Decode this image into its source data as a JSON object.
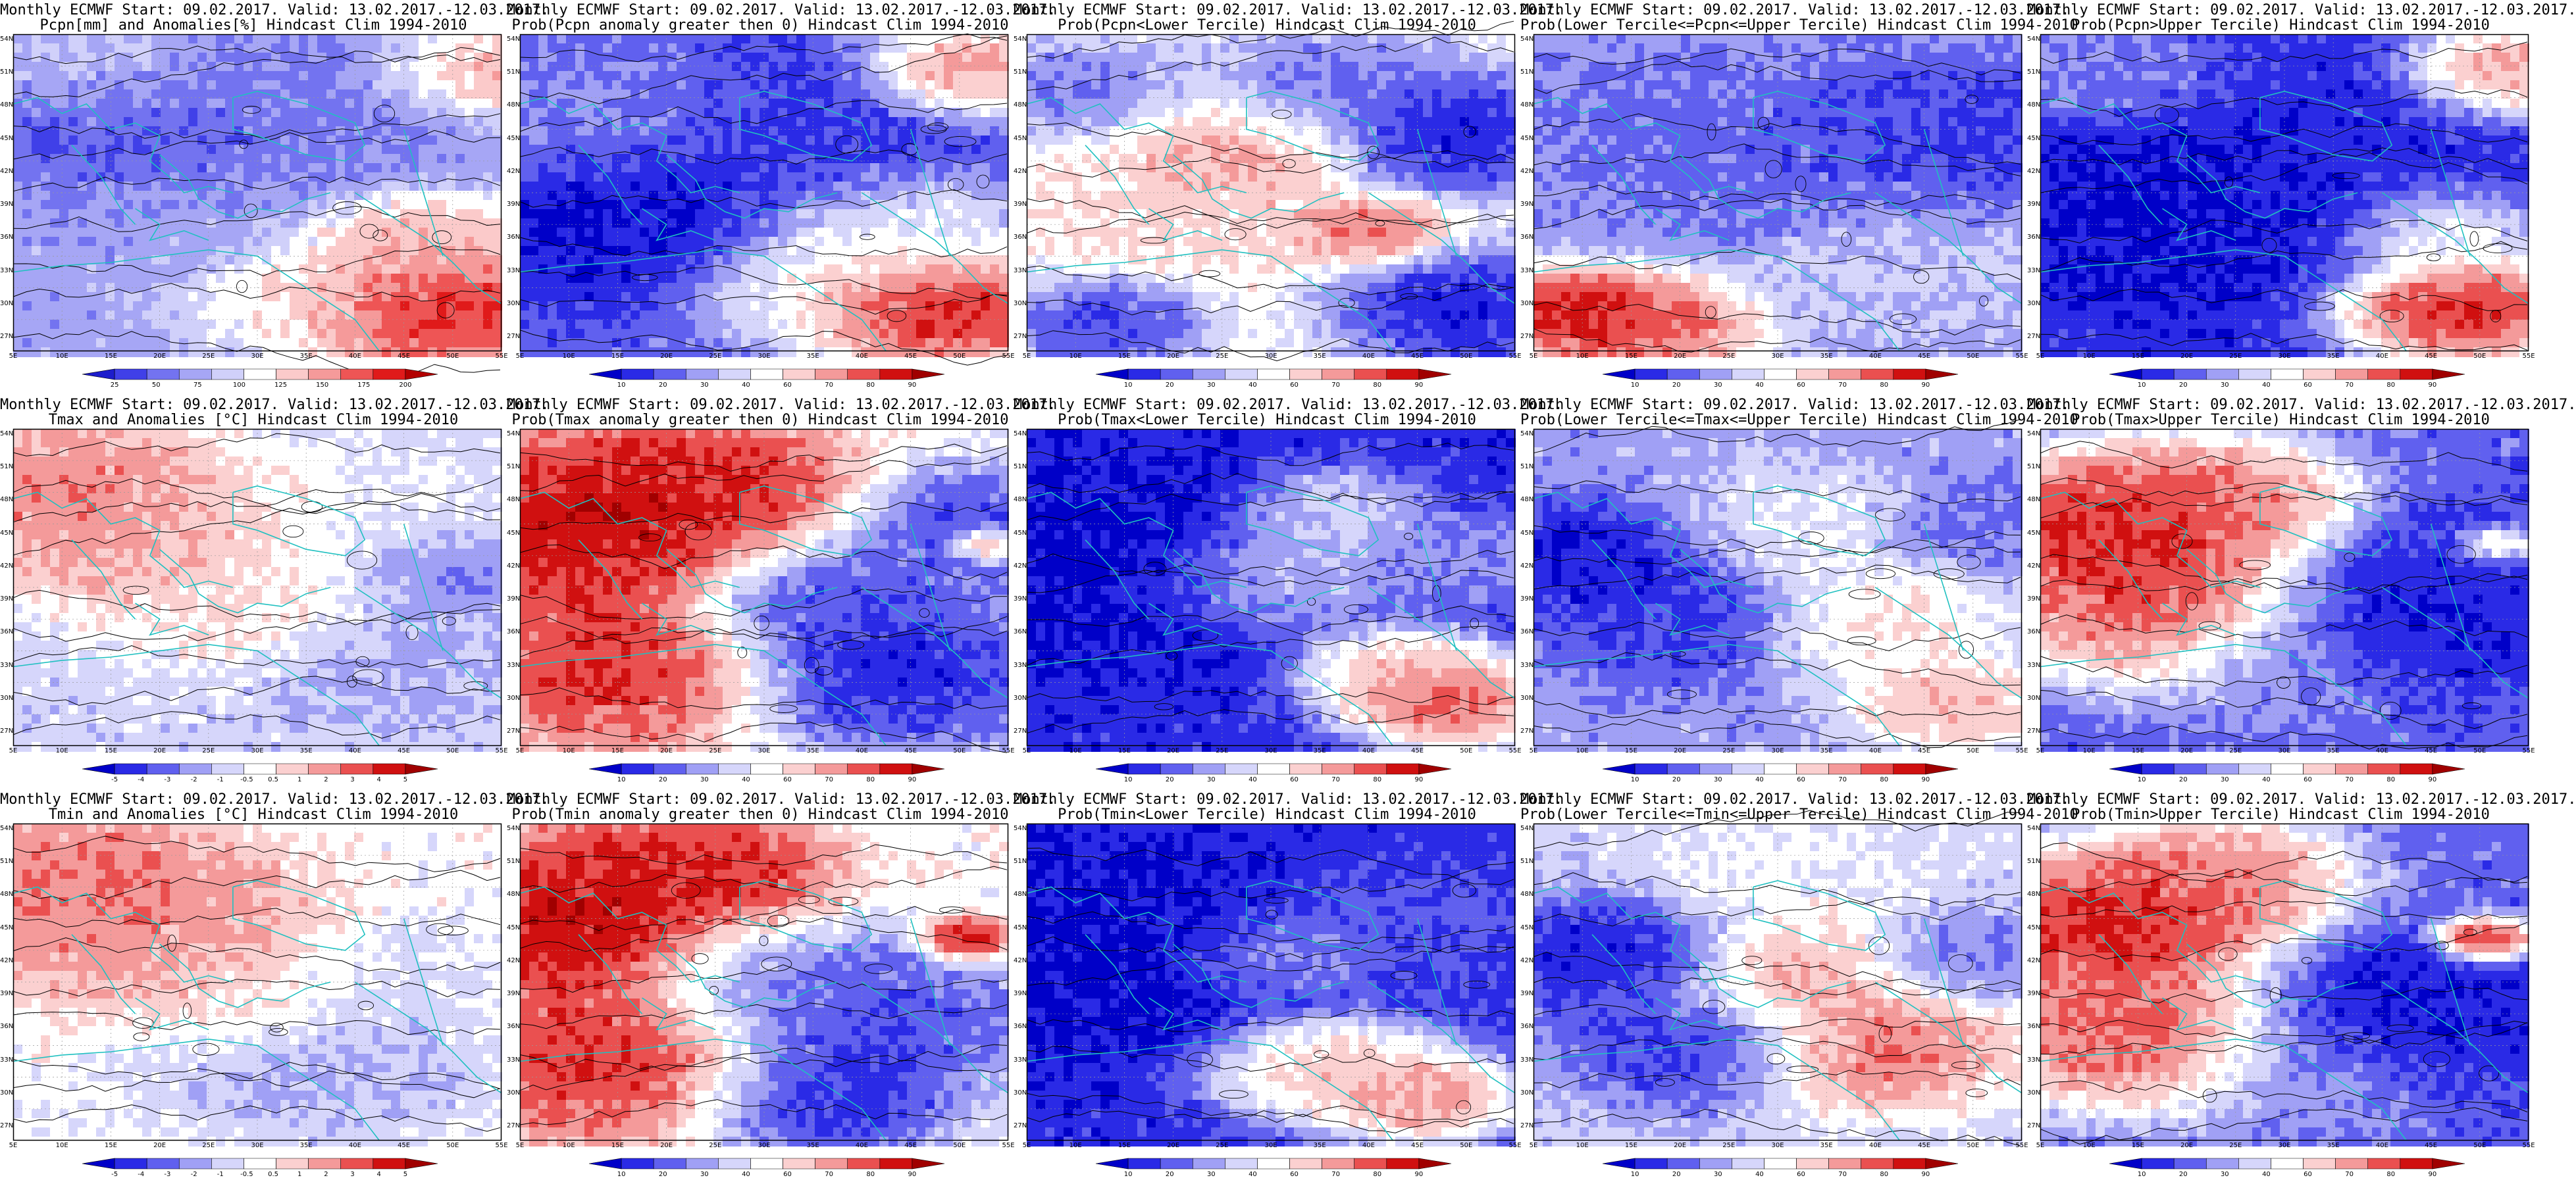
{
  "panels": [
    {
      "line1": "Monthly ECMWF Start: 09.02.2017. Valid: 13.02.2017.-12.03.2017.",
      "line2": "Pcpn[mm] and Anomalies[%] Hindcast Clim 1994-2010",
      "scale": "pcpn_pct",
      "ticks": [
        "25",
        "50",
        "75",
        "100",
        "125",
        "150",
        "175",
        "200"
      ],
      "palette": [
        "#1d1dcc",
        "#4040e8",
        "#7373f0",
        "#a6a6f5",
        "#d0d0fa",
        "#ffffff",
        "#fbcaca",
        "#f59a9a",
        "#ee5555",
        "#e01a1a",
        "#b30000"
      ],
      "field": "pcpn_anom"
    },
    {
      "line1": "Monthly ECMWF Start: 09.02.2017. Valid: 13.02.2017.-12.03.2017.",
      "line2": "Prob(Pcpn anomaly greater then 0) Hindcast Clim 1994-2010",
      "scale": "prob",
      "ticks": [
        "10",
        "20",
        "30",
        "40",
        "60",
        "70",
        "80",
        "90"
      ],
      "palette": [
        "#0000c8",
        "#2a2ae6",
        "#6060ef",
        "#a0a0f5",
        "#d6d6fb",
        "#ffffff",
        "#fbd0d0",
        "#f49a9a",
        "#ea5050",
        "#d01010",
        "#a00000"
      ],
      "field": "pcpn_gt0"
    },
    {
      "line1": "Monthly ECMWF Start: 09.02.2017. Valid: 13.02.2017.-12.03.2017.",
      "line2": "Prob(Pcpn<Lower Tercile) Hindcast Clim 1994-2010",
      "scale": "prob",
      "ticks": [
        "10",
        "20",
        "30",
        "40",
        "60",
        "70",
        "80",
        "90"
      ],
      "palette": [
        "#0000c8",
        "#2a2ae6",
        "#6060ef",
        "#a0a0f5",
        "#d6d6fb",
        "#ffffff",
        "#fbd0d0",
        "#f49a9a",
        "#ea5050",
        "#d01010",
        "#a00000"
      ],
      "field": "pcpn_lower"
    },
    {
      "line1": "Monthly ECMWF Start: 09.02.2017. Valid: 13.02.2017.-12.03.2017.",
      "line2": "Prob(Lower Tercile<=Pcpn<=Upper Tercile) Hindcast Clim 1994-2010",
      "scale": "prob",
      "ticks": [
        "10",
        "20",
        "30",
        "40",
        "60",
        "70",
        "80",
        "90"
      ],
      "palette": [
        "#0000c8",
        "#2a2ae6",
        "#6060ef",
        "#a0a0f5",
        "#d6d6fb",
        "#ffffff",
        "#fbd0d0",
        "#f49a9a",
        "#ea5050",
        "#d01010",
        "#a00000"
      ],
      "field": "pcpn_mid"
    },
    {
      "line1": "Monthly ECMWF Start: 09.02.2017. Valid: 13.02.2017.-12.03.2017.",
      "line2": "Prob(Pcpn>Upper Tercile) Hindcast Clim 1994-2010",
      "scale": "prob",
      "ticks": [
        "10",
        "20",
        "30",
        "40",
        "60",
        "70",
        "80",
        "90"
      ],
      "palette": [
        "#0000c8",
        "#2a2ae6",
        "#6060ef",
        "#a0a0f5",
        "#d6d6fb",
        "#ffffff",
        "#fbd0d0",
        "#f49a9a",
        "#ea5050",
        "#d01010",
        "#a00000"
      ],
      "field": "pcpn_upper"
    },
    {
      "line1": "Monthly ECMWF Start: 09.02.2017. Valid: 13.02.2017.-12.03.2017.",
      "line2": "Tmax and Anomalies [°C] Hindcast Clim 1994-2010",
      "scale": "temp",
      "ticks": [
        "-5",
        "-4",
        "-3",
        "-2",
        "-1",
        "-0.5",
        "0.5",
        "1",
        "2",
        "3",
        "4",
        "5"
      ],
      "palette": [
        "#0000c8",
        "#2a2ae6",
        "#6060ef",
        "#a0a0f5",
        "#d6d6fb",
        "#ffffff",
        "#fbd0d0",
        "#f49a9a",
        "#ea5050",
        "#d01010",
        "#a00000"
      ],
      "field": "tmax_anom"
    },
    {
      "line1": "Monthly ECMWF Start: 09.02.2017. Valid: 13.02.2017.-12.03.2017.",
      "line2": "Prob(Tmax anomaly greater then 0) Hindcast Clim 1994-2010",
      "scale": "prob",
      "ticks": [
        "10",
        "20",
        "30",
        "40",
        "60",
        "70",
        "80",
        "90"
      ],
      "palette": [
        "#0000c8",
        "#2a2ae6",
        "#6060ef",
        "#a0a0f5",
        "#d6d6fb",
        "#ffffff",
        "#fbd0d0",
        "#f49a9a",
        "#ea5050",
        "#d01010",
        "#a00000"
      ],
      "field": "tmax_gt0"
    },
    {
      "line1": "Monthly ECMWF Start: 09.02.2017. Valid: 13.02.2017.-12.03.2017.",
      "line2": "Prob(Tmax<Lower Tercile) Hindcast Clim 1994-2010",
      "scale": "prob",
      "ticks": [
        "10",
        "20",
        "30",
        "40",
        "60",
        "70",
        "80",
        "90"
      ],
      "palette": [
        "#0000c8",
        "#2a2ae6",
        "#6060ef",
        "#a0a0f5",
        "#d6d6fb",
        "#ffffff",
        "#fbd0d0",
        "#f49a9a",
        "#ea5050",
        "#d01010",
        "#a00000"
      ],
      "field": "tmax_lower"
    },
    {
      "line1": "Monthly ECMWF Start: 09.02.2017. Valid: 13.02.2017.-12.03.2017.",
      "line2": "Prob(Lower Tercile<=Tmax<=Upper Tercile) Hindcast Clim 1994-2010",
      "scale": "prob",
      "ticks": [
        "10",
        "20",
        "30",
        "40",
        "60",
        "70",
        "80",
        "90"
      ],
      "palette": [
        "#0000c8",
        "#2a2ae6",
        "#6060ef",
        "#a0a0f5",
        "#d6d6fb",
        "#ffffff",
        "#fbd0d0",
        "#f49a9a",
        "#ea5050",
        "#d01010",
        "#a00000"
      ],
      "field": "tmax_mid"
    },
    {
      "line1": "Monthly ECMWF Start: 09.02.2017. Valid: 13.02.2017.-12.03.2017.",
      "line2": "Prob(Tmax>Upper Tercile) Hindcast Clim 1994-2010",
      "scale": "prob",
      "ticks": [
        "10",
        "20",
        "30",
        "40",
        "60",
        "70",
        "80",
        "90"
      ],
      "palette": [
        "#0000c8",
        "#2a2ae6",
        "#6060ef",
        "#a0a0f5",
        "#d6d6fb",
        "#ffffff",
        "#fbd0d0",
        "#f49a9a",
        "#ea5050",
        "#d01010",
        "#a00000"
      ],
      "field": "tmax_upper"
    },
    {
      "line1": "Monthly ECMWF Start: 09.02.2017. Valid: 13.02.2017.-12.03.2017.",
      "line2": "Tmin and Anomalies [°C] Hindcast Clim 1994-2010",
      "scale": "temp",
      "ticks": [
        "-5",
        "-4",
        "-3",
        "-2",
        "-1",
        "-0.5",
        "0.5",
        "1",
        "2",
        "3",
        "4",
        "5"
      ],
      "palette": [
        "#0000c8",
        "#2a2ae6",
        "#6060ef",
        "#a0a0f5",
        "#d6d6fb",
        "#ffffff",
        "#fbd0d0",
        "#f49a9a",
        "#ea5050",
        "#d01010",
        "#a00000"
      ],
      "field": "tmin_anom"
    },
    {
      "line1": "Monthly ECMWF Start: 09.02.2017. Valid: 13.02.2017.-12.03.2017.",
      "line2": "Prob(Tmin anomaly greater then 0) Hindcast Clim 1994-2010",
      "scale": "prob",
      "ticks": [
        "10",
        "20",
        "30",
        "40",
        "60",
        "70",
        "80",
        "90"
      ],
      "palette": [
        "#0000c8",
        "#2a2ae6",
        "#6060ef",
        "#a0a0f5",
        "#d6d6fb",
        "#ffffff",
        "#fbd0d0",
        "#f49a9a",
        "#ea5050",
        "#d01010",
        "#a00000"
      ],
      "field": "tmin_gt0"
    },
    {
      "line1": "Monthly ECMWF Start: 09.02.2017. Valid: 13.02.2017.-12.03.2017.",
      "line2": "Prob(Tmin<Lower Tercile) Hindcast Clim 1994-2010",
      "scale": "prob",
      "ticks": [
        "10",
        "20",
        "30",
        "40",
        "60",
        "70",
        "80",
        "90"
      ],
      "palette": [
        "#0000c8",
        "#2a2ae6",
        "#6060ef",
        "#a0a0f5",
        "#d6d6fb",
        "#ffffff",
        "#fbd0d0",
        "#f49a9a",
        "#ea5050",
        "#d01010",
        "#a00000"
      ],
      "field": "tmin_lower"
    },
    {
      "line1": "Monthly ECMWF Start: 09.02.2017. Valid: 13.02.2017.-12.03.2017.",
      "line2": "Prob(Lower Tercile<=Tmin<=Upper Tercile) Hindcast Clim 1994-2010",
      "scale": "prob",
      "ticks": [
        "10",
        "20",
        "30",
        "40",
        "60",
        "70",
        "80",
        "90"
      ],
      "palette": [
        "#0000c8",
        "#2a2ae6",
        "#6060ef",
        "#a0a0f5",
        "#d6d6fb",
        "#ffffff",
        "#fbd0d0",
        "#f49a9a",
        "#ea5050",
        "#d01010",
        "#a00000"
      ],
      "field": "tmin_mid"
    },
    {
      "line1": "Monthly ECMWF Start: 09.02.2017. Valid: 13.02.2017.-12.03.2017.",
      "line2": "Prob(Tmin>Upper Tercile) Hindcast Clim 1994-2010",
      "scale": "prob",
      "ticks": [
        "10",
        "20",
        "30",
        "40",
        "60",
        "70",
        "80",
        "90"
      ],
      "palette": [
        "#0000c8",
        "#2a2ae6",
        "#6060ef",
        "#a0a0f5",
        "#d6d6fb",
        "#ffffff",
        "#fbd0d0",
        "#f49a9a",
        "#ea5050",
        "#d01010",
        "#a00000"
      ],
      "field": "tmin_upper"
    }
  ],
  "lat_labels": [
    "54N",
    "51N",
    "48N",
    "45N",
    "42N",
    "39N",
    "36N",
    "33N",
    "30N",
    "27N"
  ],
  "lon_labels": [
    "5E",
    "10E",
    "15E",
    "20E",
    "25E",
    "30E",
    "35E",
    "40E",
    "45E",
    "50E",
    "55E"
  ],
  "colors": {
    "coast": "#20c0c0",
    "contour": "#000000",
    "frame": "#000000"
  }
}
